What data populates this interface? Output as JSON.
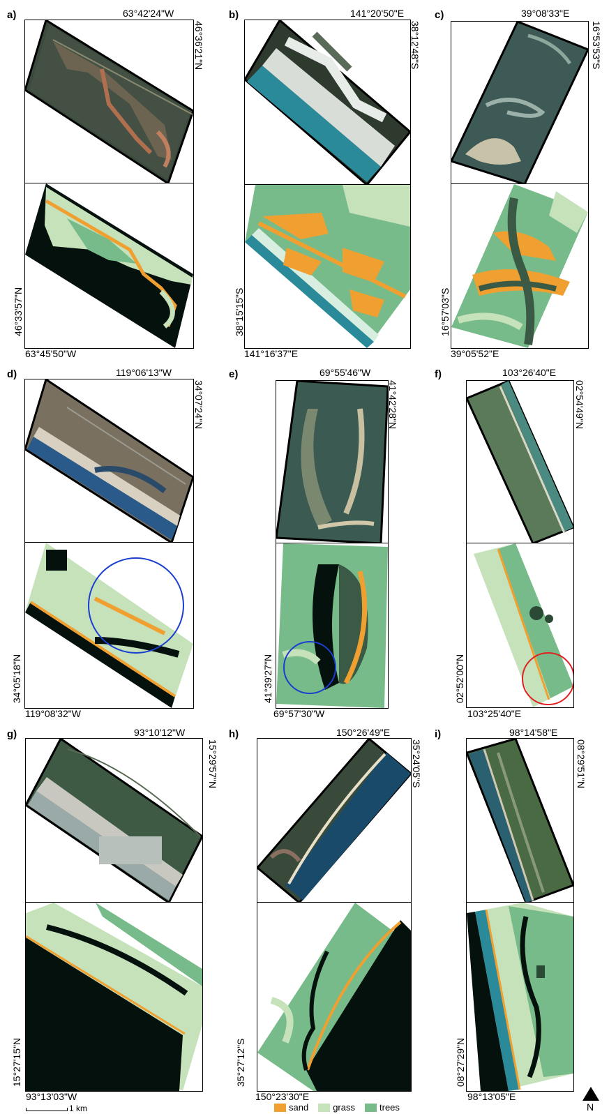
{
  "panels": [
    {
      "id": "a",
      "label": "a)",
      "top_lon": "63°42'24\"W",
      "right_lat": "46°36'21\"N",
      "left_lat": "46°33'57\"N",
      "bottom_lon": "63°45'50\"W"
    },
    {
      "id": "b",
      "label": "b)",
      "top_lon": "141°20'50\"E",
      "right_lat": "38°12'48\"S",
      "left_lat": "38°15'15\"S",
      "bottom_lon": "141°16'37\"E"
    },
    {
      "id": "c",
      "label": "c)",
      "top_lon": "39°08'33\"E",
      "right_lat": "16°53'53\"S",
      "left_lat": "16°57'03\"S",
      "bottom_lon": "39°05'52\"E"
    },
    {
      "id": "d",
      "label": "d)",
      "top_lon": "119°06'13\"W",
      "right_lat": "34°07'24\"N",
      "left_lat": "34°05'18\"N",
      "bottom_lon": "119°08'32\"W"
    },
    {
      "id": "e",
      "label": "e)",
      "top_lon": "69°55'46\"W",
      "right_lat": "41°42'28\"N",
      "left_lat": "41°39'27\"N",
      "bottom_lon": "69°57'30\"W"
    },
    {
      "id": "f",
      "label": "f)",
      "top_lon": "103°26'40\"E",
      "right_lat": "02°54'49\"N",
      "left_lat": "02°52'00\"N",
      "bottom_lon": "103°25'40\"E"
    },
    {
      "id": "g",
      "label": "g)",
      "top_lon": "93°10'12\"W",
      "right_lat": "15°29'57\"N",
      "left_lat": "15°27'15\"N",
      "bottom_lon": "93°13'03\"W"
    },
    {
      "id": "h",
      "label": "h)",
      "top_lon": "150°26'49\"E",
      "right_lat": "35°24'05\"S",
      "left_lat": "35°27'12\"S",
      "bottom_lon": "150°23'30\"E"
    },
    {
      "id": "i",
      "label": "i)",
      "top_lon": "98°14'58\"E",
      "right_lat": "08°29'51\"N",
      "left_lat": "08°27'29\"N",
      "bottom_lon": "98°13'05\"E"
    }
  ],
  "legend": {
    "items": [
      {
        "label": "sand",
        "color": "#f0a030"
      },
      {
        "label": "grass",
        "color": "#c6e2bb"
      },
      {
        "label": "trees",
        "color": "#77bb8a"
      }
    ]
  },
  "scale": {
    "label": "1 km"
  },
  "north": {
    "label": "N"
  },
  "colors": {
    "water_dark": "#05110c",
    "sand": "#f0a030",
    "grass": "#c6e2bb",
    "trees": "#77bb8a",
    "circle_blue": "#1a3fd0",
    "circle_red": "#e02020"
  }
}
